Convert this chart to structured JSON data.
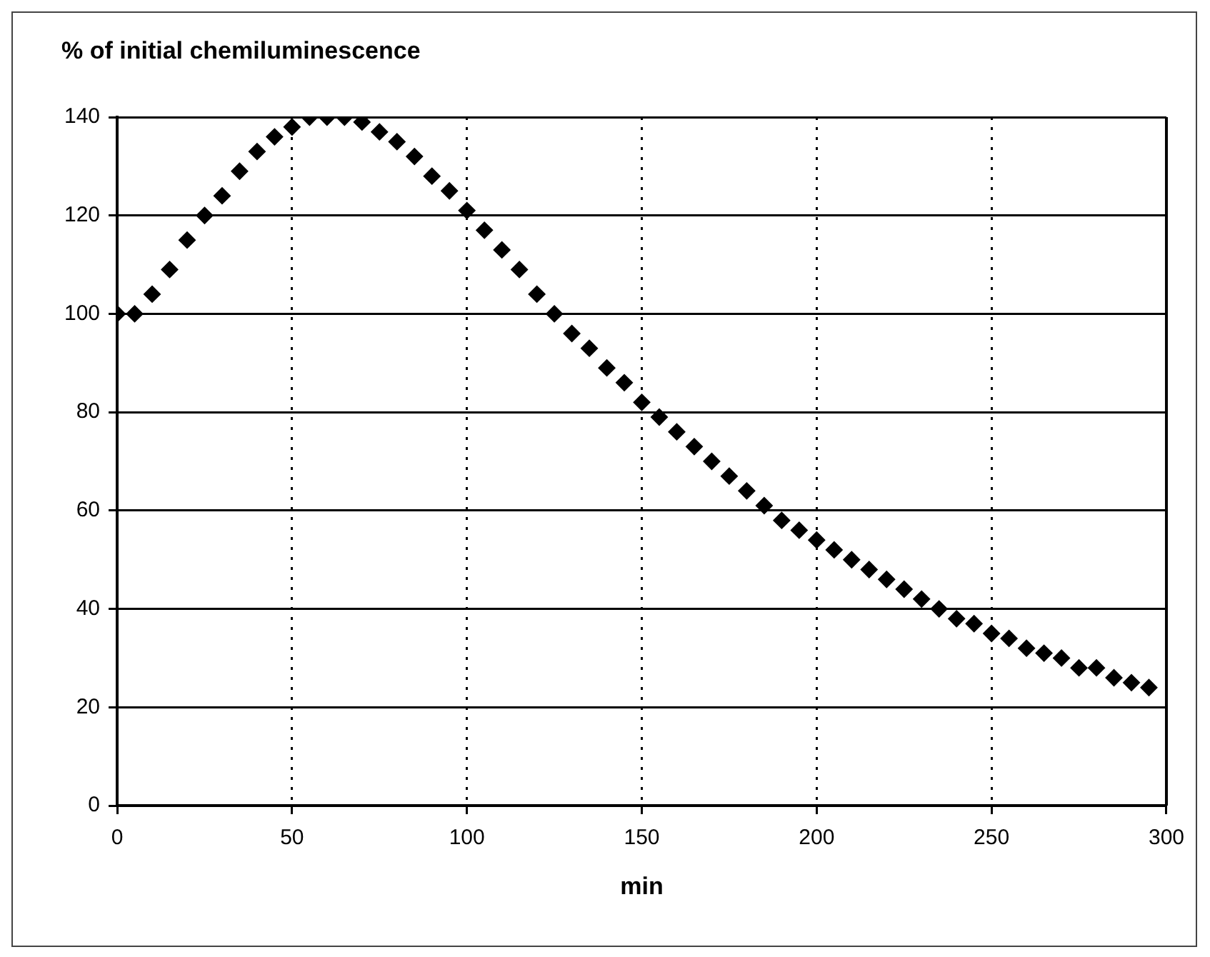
{
  "chart_data": {
    "type": "scatter",
    "ylabel": "% of initial chemiluminescence",
    "xlabel": "min",
    "x": [
      0,
      5,
      10,
      15,
      20,
      25,
      30,
      35,
      40,
      45,
      50,
      55,
      60,
      65,
      70,
      75,
      80,
      85,
      90,
      95,
      100,
      105,
      110,
      115,
      120,
      125,
      130,
      135,
      140,
      145,
      150,
      155,
      160,
      165,
      170,
      175,
      180,
      185,
      190,
      195,
      200,
      205,
      210,
      215,
      220,
      225,
      230,
      235,
      240,
      245,
      250,
      255,
      260,
      265,
      270,
      275,
      280,
      285,
      290,
      295
    ],
    "series": [
      {
        "color": "#000000",
        "values": [
          100,
          100,
          104,
          109,
          115,
          120,
          124,
          129,
          133,
          136,
          138,
          140,
          140,
          140,
          139,
          137,
          135,
          132,
          128,
          125,
          121,
          117,
          113,
          109,
          104,
          100,
          96,
          93,
          89,
          86,
          82,
          79,
          76,
          73,
          70,
          67,
          64,
          61,
          58,
          56,
          54,
          52,
          50,
          48,
          46,
          44,
          42,
          40,
          38,
          37,
          35,
          34,
          32,
          31,
          30,
          28,
          28,
          26,
          25,
          24
        ]
      }
    ],
    "xlim": [
      0,
      300
    ],
    "xticks": [
      0,
      50,
      100,
      150,
      200,
      250,
      300
    ],
    "ylim": [
      0,
      140
    ],
    "yticks": [
      0,
      20,
      40,
      60,
      80,
      100,
      120,
      140
    ],
    "grid": true,
    "marker": "diamond",
    "legend": false
  }
}
